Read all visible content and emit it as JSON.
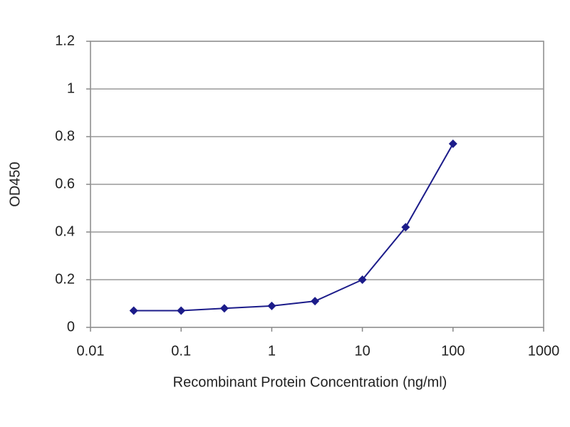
{
  "chart_data": {
    "type": "line",
    "x_label": "Recombinant Protein Concentration (ng/ml)",
    "y_label": "OD450",
    "x": [
      0.03,
      0.1,
      0.3,
      1,
      3,
      10,
      30,
      100
    ],
    "series": [
      {
        "color": "#1c1c8a",
        "values": [
          0.07,
          0.07,
          0.08,
          0.09,
          0.11,
          0.2,
          0.42,
          0.77
        ]
      }
    ],
    "xscale": "log",
    "xlim": [
      0.01,
      1000
    ],
    "xticks": [
      0.01,
      0.1,
      1,
      10,
      100,
      1000
    ],
    "ylim": [
      0,
      1.2
    ],
    "yticks": [
      0,
      0.2,
      0.4,
      0.6,
      0.8,
      1,
      1.2
    ],
    "grid": true
  }
}
